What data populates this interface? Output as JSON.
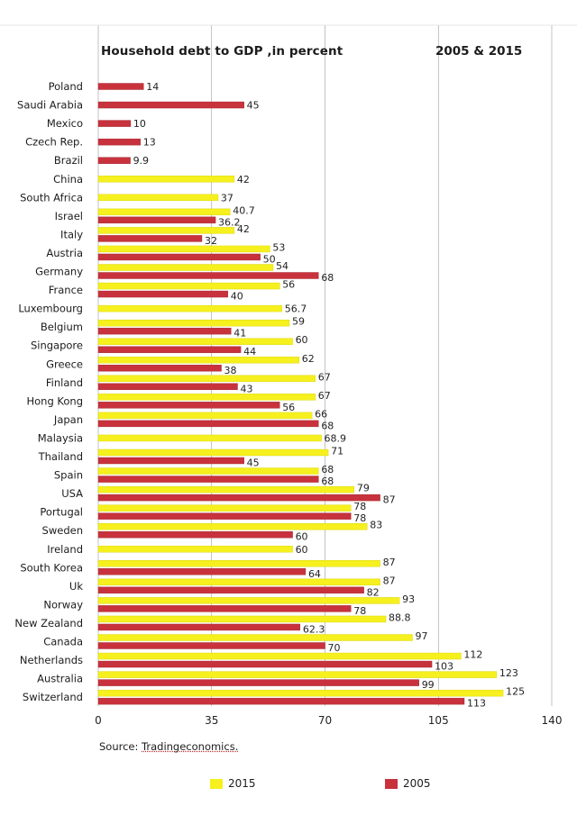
{
  "chart_data": {
    "type": "bar",
    "orientation": "horizontal",
    "title": "Household debt to GDP ,in percent",
    "subtitle": "2005 & 2015",
    "source_label": "Source:",
    "source_name": "Tradingeconomics.",
    "xlim": [
      0,
      140
    ],
    "xticks": [
      0,
      35,
      70,
      105,
      140
    ],
    "grid": true,
    "legend_position": "bottom",
    "colors": {
      "2015": "#f5f01e",
      "2005": "#c8323c"
    },
    "categories": [
      "Poland",
      "Saudi Arabia",
      "Mexico",
      "Czech Rep.",
      "Brazil",
      "China",
      "South Africa",
      "Israel",
      "Italy",
      "Austria",
      "Germany",
      "France",
      "Luxembourg",
      "Belgium",
      "Singapore",
      "Greece",
      "Finland",
      "Hong Kong",
      "Japan",
      "Malaysia",
      "Thailand",
      "Spain",
      "USA",
      "Portugal",
      "Sweden",
      "Ireland",
      "South Korea",
      "Uk",
      "Norway",
      "New Zealand",
      "Canada",
      "Netherlands",
      "Australia",
      "Switzerland"
    ],
    "series": [
      {
        "name": "2015",
        "values": [
          null,
          null,
          null,
          null,
          null,
          42,
          37,
          40.7,
          42,
          53,
          54,
          56,
          56.7,
          59,
          60,
          62,
          67,
          67,
          66,
          68.9,
          71,
          68,
          79,
          78,
          83,
          60,
          87,
          87,
          93,
          88.8,
          97,
          112,
          123,
          125
        ]
      },
      {
        "name": "2005",
        "values": [
          14,
          45,
          10,
          13,
          9.9,
          null,
          null,
          36.2,
          32,
          50,
          68,
          40,
          null,
          41,
          44,
          38,
          43,
          56,
          68,
          null,
          45,
          68,
          87,
          78,
          60,
          null,
          64,
          82,
          78,
          62.3,
          70,
          103,
          99,
          113
        ]
      }
    ]
  }
}
